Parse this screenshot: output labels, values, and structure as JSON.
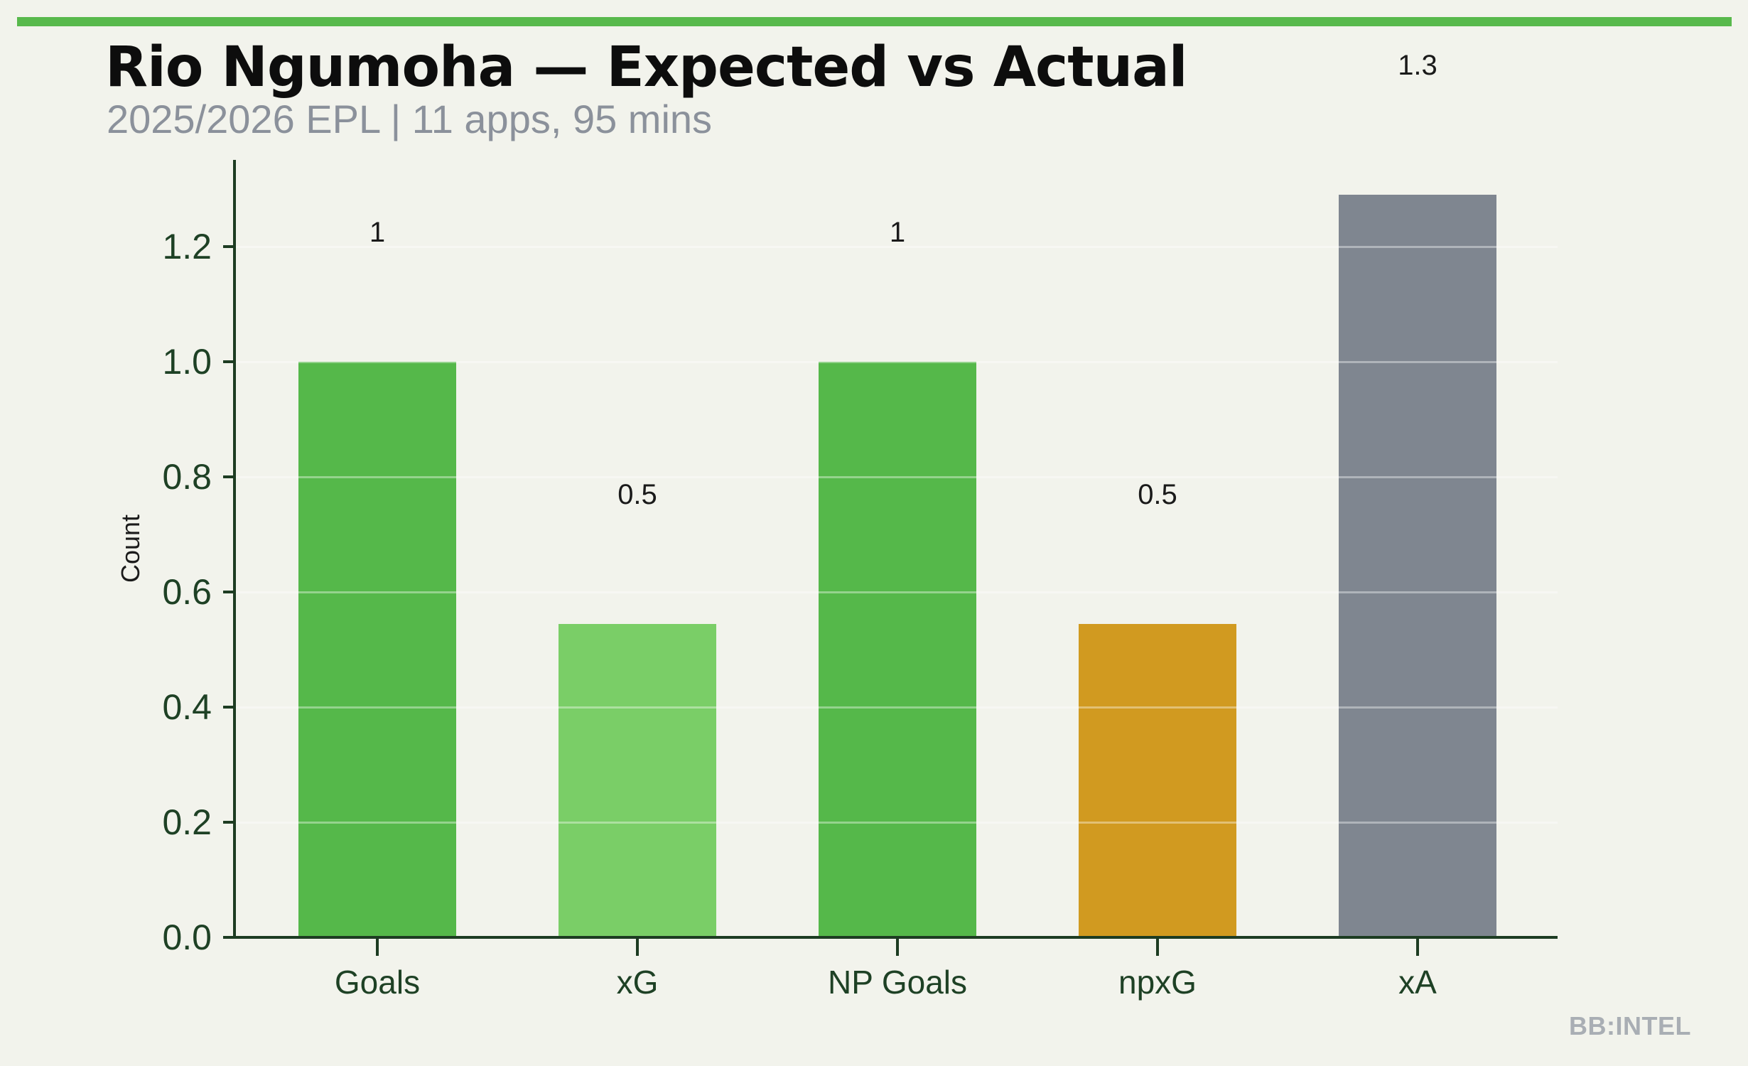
{
  "footer": {
    "watermark": "BB:INTEL"
  },
  "colors": {
    "background": "#f2f3ec",
    "accent_bar": "#58b94c",
    "axis": "#1d3c22",
    "tick_label": "#1e4125",
    "title": "#0d0d0d",
    "subtitle": "#8b919b",
    "value_label": "#1a1a1a",
    "watermark": "#a9aeb4"
  },
  "chart_data": {
    "type": "bar",
    "title": "Rio Ngumoha — Expected vs Actual",
    "subtitle": "2025/2026 EPL | 11 apps, 95 mins",
    "categories": [
      "Goals",
      "xG",
      "NP Goals",
      "npxG",
      "xA"
    ],
    "values": [
      1.0,
      0.545,
      1.0,
      0.545,
      1.29
    ],
    "value_labels": [
      "1",
      "0.5",
      "1",
      "0.5",
      "1.3"
    ],
    "bar_colors": [
      "#55b84a",
      "#7ace67",
      "#55b84a",
      "#d19a20",
      "#7f8690"
    ],
    "xlabel": "",
    "ylabel": "Count",
    "ylim": [
      0,
      1.35
    ],
    "yticks": [
      0.0,
      0.2,
      0.4,
      0.6,
      0.8,
      1.0,
      1.2
    ],
    "grid": "horizontal faint white lines drawn over bars",
    "legend": "none"
  }
}
